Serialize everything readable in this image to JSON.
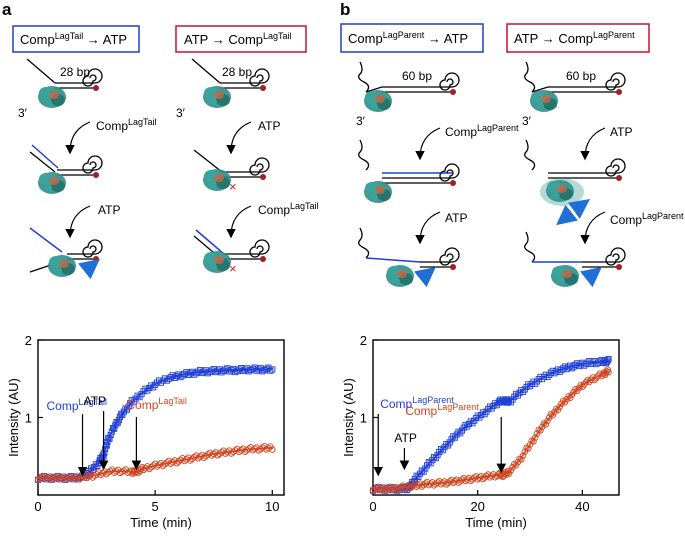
{
  "panels": {
    "a": {
      "letter": "a",
      "box1": {
        "base": "Comp",
        "sup": "LagTail",
        "arrow": "→",
        "target": "ATP",
        "color": "#1f3fbf"
      },
      "box2": {
        "base": "ATP",
        "arrow": "→",
        "target_base": "Comp",
        "target_sup": "LagTail",
        "color": "#c8102e"
      },
      "bp_label": "28 bp",
      "prime": "3′",
      "step_comp": {
        "base": "Comp",
        "sup": "LagTail"
      },
      "step_atp": "ATP"
    },
    "b": {
      "letter": "b",
      "box1": {
        "base": "Comp",
        "sup": "LagParent",
        "arrow": "→",
        "target": "ATP",
        "color": "#1f3fbf"
      },
      "box2": {
        "base": "ATP",
        "arrow": "→",
        "target_base": "Comp",
        "target_sup": "LagParent",
        "color": "#c8102e"
      },
      "bp_label": "60 bp",
      "prime": "3′",
      "step_comp": {
        "base": "Comp",
        "sup": "LagParent"
      },
      "step_atp": "ATP"
    }
  },
  "colors": {
    "blue": "#1f3fd6",
    "red": "#d2451e",
    "protein": "#2f8f8a",
    "dna_end": "#a01f2c"
  },
  "chart_data": [
    {
      "type": "scatter",
      "panel": "a",
      "xlabel": "Time (min)",
      "ylabel": "Intensity (AU)",
      "xlim": [
        0,
        10.5
      ],
      "ylim": [
        0,
        2
      ],
      "xticks": [
        0,
        5,
        10
      ],
      "yticks": [
        1,
        2
      ],
      "series": [
        {
          "name": "Comp→ATP",
          "color": "#1f3fd6",
          "x": [
            0,
            0.5,
            1.0,
            1.5,
            1.9,
            2.2,
            2.6,
            2.8,
            3.0,
            3.3,
            3.6,
            4.0,
            4.5,
            5.0,
            5.5,
            6.0,
            6.5,
            7.0,
            7.5,
            8.0,
            8.5,
            9.0,
            9.5,
            10.0
          ],
          "y": [
            0.22,
            0.22,
            0.22,
            0.22,
            0.23,
            0.3,
            0.42,
            0.52,
            0.72,
            0.9,
            1.05,
            1.2,
            1.33,
            1.43,
            1.5,
            1.54,
            1.57,
            1.59,
            1.6,
            1.61,
            1.61,
            1.62,
            1.62,
            1.62
          ]
        },
        {
          "name": "ATP→Comp",
          "color": "#d2451e",
          "x": [
            0,
            0.5,
            1.0,
            1.5,
            2.0,
            2.5,
            3.0,
            3.5,
            4.0,
            4.2,
            4.5,
            5.0,
            5.5,
            6.0,
            6.5,
            7.0,
            7.5,
            8.0,
            8.5,
            9.0,
            9.5,
            10.0
          ],
          "y": [
            0.22,
            0.22,
            0.22,
            0.22,
            0.23,
            0.26,
            0.3,
            0.31,
            0.3,
            0.3,
            0.34,
            0.38,
            0.41,
            0.44,
            0.47,
            0.5,
            0.53,
            0.55,
            0.57,
            0.59,
            0.6,
            0.61
          ]
        }
      ],
      "annotations": [
        {
          "text_base": "Comp",
          "text_sup": "LagTail",
          "x": 1.9,
          "color": "#1f3fd6"
        },
        {
          "text_base": "ATP",
          "x": 2.8,
          "color": "#000000"
        },
        {
          "text_base": "Comp",
          "text_sup": "LagTail",
          "x": 4.2,
          "color": "#d2451e"
        }
      ]
    },
    {
      "type": "scatter",
      "panel": "b",
      "xlabel": "Time (min)",
      "ylabel": "Intensity (AU)",
      "xlim": [
        0,
        47
      ],
      "ylim": [
        0,
        2
      ],
      "xticks": [
        0,
        20,
        40
      ],
      "yticks": [
        1,
        2
      ],
      "series": [
        {
          "name": "Comp→ATP",
          "color": "#1f3fd6",
          "x": [
            0,
            2,
            4,
            6,
            7,
            8,
            10,
            12,
            14,
            16,
            18,
            20,
            22,
            24,
            25,
            26,
            28,
            30,
            32,
            34,
            36,
            38,
            40,
            42,
            44,
            45
          ],
          "y": [
            0.08,
            0.08,
            0.08,
            0.08,
            0.1,
            0.2,
            0.35,
            0.5,
            0.64,
            0.78,
            0.9,
            1.0,
            1.1,
            1.2,
            1.22,
            1.2,
            1.32,
            1.42,
            1.5,
            1.57,
            1.62,
            1.66,
            1.69,
            1.71,
            1.72,
            1.73
          ]
        },
        {
          "name": "ATP→Comp",
          "color": "#d2451e",
          "x": [
            0,
            2,
            4,
            6,
            8,
            10,
            12,
            14,
            16,
            18,
            20,
            22,
            24,
            25,
            26,
            28,
            30,
            32,
            34,
            36,
            38,
            40,
            42,
            44,
            45
          ],
          "y": [
            0.08,
            0.08,
            0.08,
            0.1,
            0.12,
            0.14,
            0.15,
            0.16,
            0.18,
            0.2,
            0.22,
            0.24,
            0.26,
            0.26,
            0.3,
            0.45,
            0.65,
            0.85,
            1.02,
            1.17,
            1.3,
            1.42,
            1.5,
            1.56,
            1.6
          ]
        }
      ],
      "annotations": [
        {
          "text_base": "Comp",
          "text_sup": "LagParent",
          "x": 1.0,
          "color": "#1f3fd6"
        },
        {
          "text_base": "ATP",
          "x": 6.0,
          "color": "#000000"
        },
        {
          "text_base": "Comp",
          "text_sup": "LagParent",
          "x": 24.5,
          "color": "#d2451e"
        }
      ]
    }
  ]
}
